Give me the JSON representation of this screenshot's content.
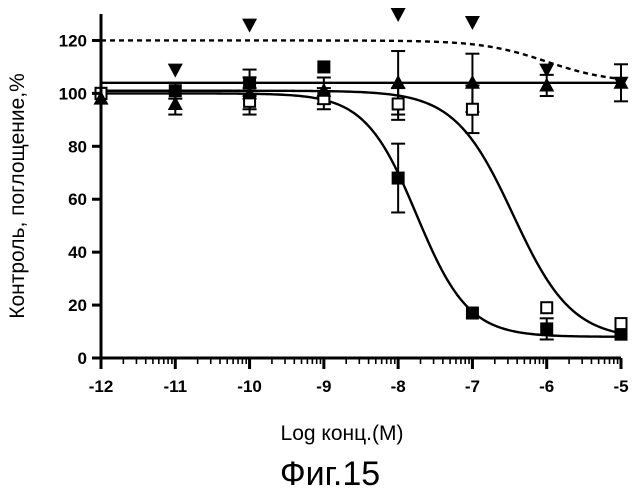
{
  "chart_data": {
    "type": "scatter",
    "title": "",
    "caption": "Фиг.15",
    "xlabel": "Log конц.(M)",
    "ylabel": "Контроль, поглощение,%",
    "xlim": [
      -12,
      -5
    ],
    "ylim": [
      0,
      130
    ],
    "xticks": [
      -12,
      -11,
      -10,
      -9,
      -8,
      -7,
      -6,
      -5
    ],
    "yticks": [
      0,
      20,
      40,
      60,
      80,
      100,
      120
    ],
    "xtick_labels": [
      "-12",
      "-11",
      "-10",
      "-9",
      "-8",
      "-7",
      "-6",
      "-5"
    ],
    "ytick_labels": [
      "0",
      "20",
      "40",
      "60",
      "80",
      "100",
      "120"
    ],
    "series": [
      {
        "name": "filled squares",
        "marker": "square-filled",
        "x": [
          -12,
          -11,
          -10,
          -9,
          -8,
          -7,
          -6,
          -5
        ],
        "y": [
          100,
          101,
          104,
          110,
          68,
          17,
          11,
          9
        ],
        "err": [
          0,
          3,
          5,
          0,
          13,
          0,
          4,
          0
        ],
        "fit": {
          "top": 100,
          "bottom": 8,
          "logEC50": -7.75,
          "hill": 1.25
        },
        "fit_style": "solid"
      },
      {
        "name": "open squares",
        "marker": "square-open",
        "x": [
          -12,
          -10,
          -9,
          -8,
          -7,
          -6,
          -5
        ],
        "y": [
          100,
          97,
          98,
          96,
          94,
          19,
          13
        ],
        "err": [
          0,
          5,
          4,
          6,
          9,
          0,
          0
        ],
        "fit": {
          "top": 101,
          "bottom": 7,
          "logEC50": -6.45,
          "hill": 1.1
        },
        "fit_style": "solid"
      },
      {
        "name": "filled up-triangles",
        "marker": "triangle-up",
        "x": [
          -12,
          -11,
          -10,
          -9,
          -8,
          -7,
          -6,
          -5
        ],
        "y": [
          98,
          96,
          100,
          101,
          104,
          104,
          103,
          104
        ],
        "err": [
          0,
          4,
          6,
          5,
          12,
          11,
          4,
          7
        ],
        "fit": {
          "constant": 104
        },
        "fit_style": "solid"
      },
      {
        "name": "filled down-triangles",
        "marker": "triangle-down",
        "x": [
          -11,
          -10,
          -8,
          -7,
          -6,
          -5
        ],
        "y": [
          109,
          126,
          130,
          127,
          109,
          104
        ],
        "err": [
          0,
          0,
          0,
          0,
          0,
          0
        ],
        "fit": {
          "top": 120,
          "bottom": 104,
          "logEC50": -6.0,
          "hill": 1.0
        },
        "fit_style": "dashed"
      }
    ]
  }
}
